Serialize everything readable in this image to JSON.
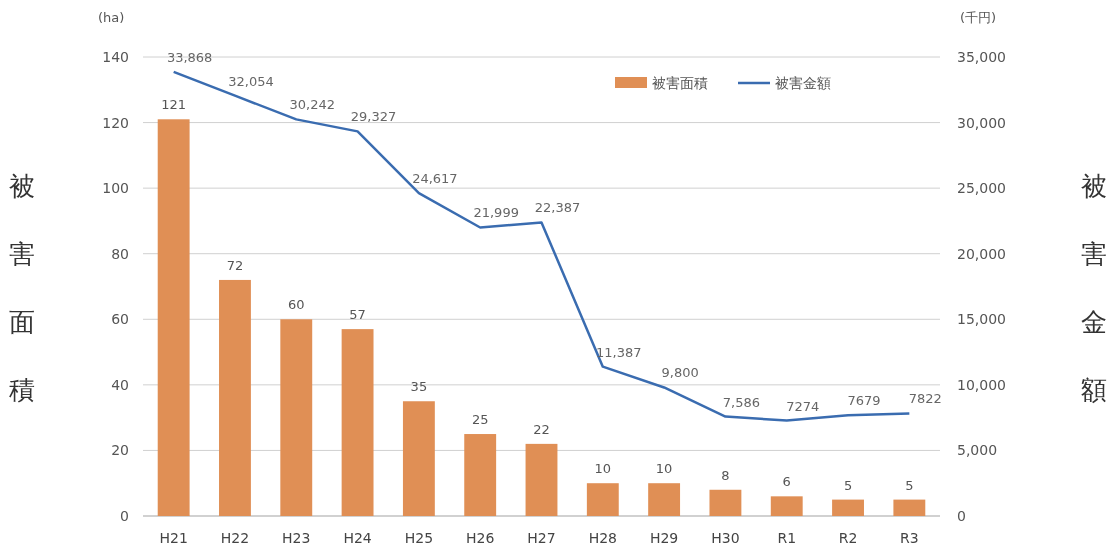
{
  "chart_data": {
    "type": "bar",
    "categories": [
      "H21",
      "H22",
      "H23",
      "H24",
      "H25",
      "H26",
      "H27",
      "H28",
      "H29",
      "H30",
      "R1",
      "R2",
      "R3"
    ],
    "series": [
      {
        "name": "被害面積",
        "color": "#e08f55",
        "values": [
          121,
          72,
          60,
          57,
          35,
          25,
          22,
          10,
          10,
          8,
          6,
          5,
          5
        ],
        "value_labels": [
          "121",
          "72",
          "60",
          "57",
          "35",
          "25",
          "22",
          "10",
          "10",
          "8",
          "6",
          "5",
          "5"
        ]
      },
      {
        "name": "被害金額",
        "type": "line",
        "axis": "y2",
        "color": "#3a6cb0",
        "values": [
          33868,
          32054,
          30242,
          29327,
          24617,
          21999,
          22387,
          11387,
          9800,
          7586,
          7274,
          7679,
          7822
        ],
        "value_labels": [
          "33,868",
          "32,054",
          "30,242",
          "29,327",
          "24,617",
          "21,999",
          "22,387",
          "11,387",
          "9,800",
          "7,586",
          "7274",
          "7679",
          "7822"
        ]
      }
    ],
    "ylabel": "被害面積",
    "y2label": "被害金額",
    "ylim": [
      0,
      140
    ],
    "yticks": [
      0,
      20,
      40,
      60,
      80,
      100,
      120,
      140
    ],
    "y2lim": [
      0,
      35000
    ],
    "y2ticks": [
      0,
      {
        "value": 5000,
        "label": "5,000"
      },
      {
        "value": 10000,
        "label": "10,000"
      },
      {
        "value": 15000,
        "label": "15,000"
      },
      {
        "value": 20000,
        "label": "20,000"
      },
      {
        "value": 25000,
        "label": "25,000"
      },
      {
        "value": 30000,
        "label": "30,000"
      },
      {
        "value": 35000,
        "label": "35,000"
      }
    ],
    "annotations": [
      "(ha)",
      "(千円)"
    ],
    "grid": "y",
    "legend": "top right"
  }
}
